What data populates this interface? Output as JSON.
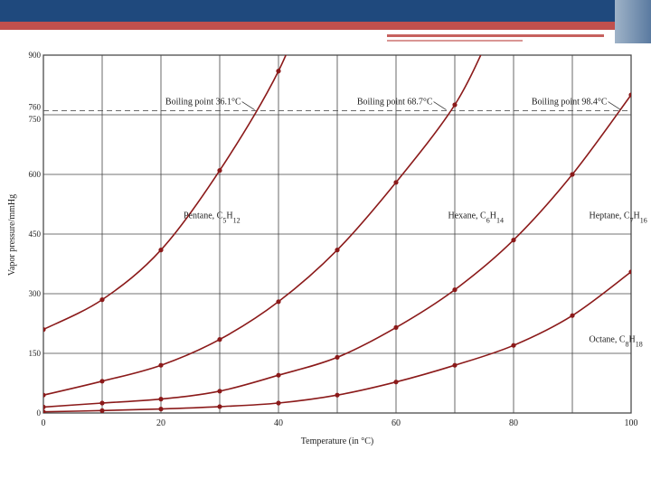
{
  "slide": {
    "colors": {
      "banner": "#1f497d",
      "accent": "#c0504d",
      "curve": "#8b1a1a"
    }
  },
  "chart_data": {
    "type": "line",
    "xlabel": "Temperature (in °C)",
    "ylabel": "Vapor pressure/mmHg",
    "xlim": [
      0,
      100
    ],
    "ylim": [
      0,
      900
    ],
    "x_ticks": [
      0,
      10,
      20,
      30,
      40,
      50,
      60,
      70,
      80,
      90,
      100
    ],
    "x_tick_labels": [
      "0",
      "20",
      "40",
      "60",
      "80",
      "100"
    ],
    "x_tick_label_values": [
      0,
      20,
      40,
      60,
      80,
      100
    ],
    "y_ticks": [
      0,
      150,
      300,
      450,
      600,
      750,
      760,
      900
    ],
    "y_tick_labels": [
      "0",
      "150",
      "300",
      "450",
      "600",
      "750",
      "760",
      "900"
    ],
    "y_grid": [
      0,
      150,
      300,
      450,
      600,
      750,
      900
    ],
    "reference_line": {
      "y": 760,
      "style": "dashed"
    },
    "series": [
      {
        "name": "Pentane",
        "formula_base": "C",
        "sub1": "5",
        "h": "H",
        "sub2": "12",
        "x": [
          0,
          10,
          20,
          30,
          40
        ],
        "values": [
          210,
          285,
          410,
          610,
          860
        ]
      },
      {
        "name": "Hexane",
        "formula_base": "C",
        "sub1": "6",
        "h": "H",
        "sub2": "14",
        "x": [
          0,
          10,
          20,
          30,
          40,
          50,
          60,
          70
        ],
        "values": [
          45,
          80,
          120,
          185,
          280,
          410,
          580,
          775
        ]
      },
      {
        "name": "Heptane",
        "formula_base": "C",
        "sub1": "7",
        "h": "H",
        "sub2": "16",
        "x": [
          0,
          10,
          20,
          30,
          40,
          50,
          60,
          70,
          80,
          90,
          100
        ],
        "values": [
          15,
          25,
          35,
          55,
          95,
          140,
          215,
          310,
          435,
          600,
          800
        ]
      },
      {
        "name": "Octane",
        "formula_base": "C",
        "sub1": "8",
        "h": "H",
        "sub2": "18",
        "x": [
          0,
          10,
          20,
          30,
          40,
          50,
          60,
          70,
          80,
          90,
          100
        ],
        "values": [
          3,
          6,
          10,
          16,
          25,
          45,
          78,
          120,
          170,
          245,
          355
        ]
      }
    ],
    "annotations": [
      {
        "text": "Boiling point 36.1°C",
        "x": 36.1,
        "y": 760
      },
      {
        "text": "Boiling point 68.7°C",
        "x": 68.7,
        "y": 760
      },
      {
        "text": "Boiling point 98.4°C",
        "x": 98.4,
        "y": 760
      }
    ],
    "series_label_positions": [
      {
        "x": 18,
        "y": 490
      },
      {
        "x": 63,
        "y": 490
      },
      {
        "x": 87,
        "y": 490
      },
      {
        "x": 87,
        "y": 178
      }
    ]
  }
}
